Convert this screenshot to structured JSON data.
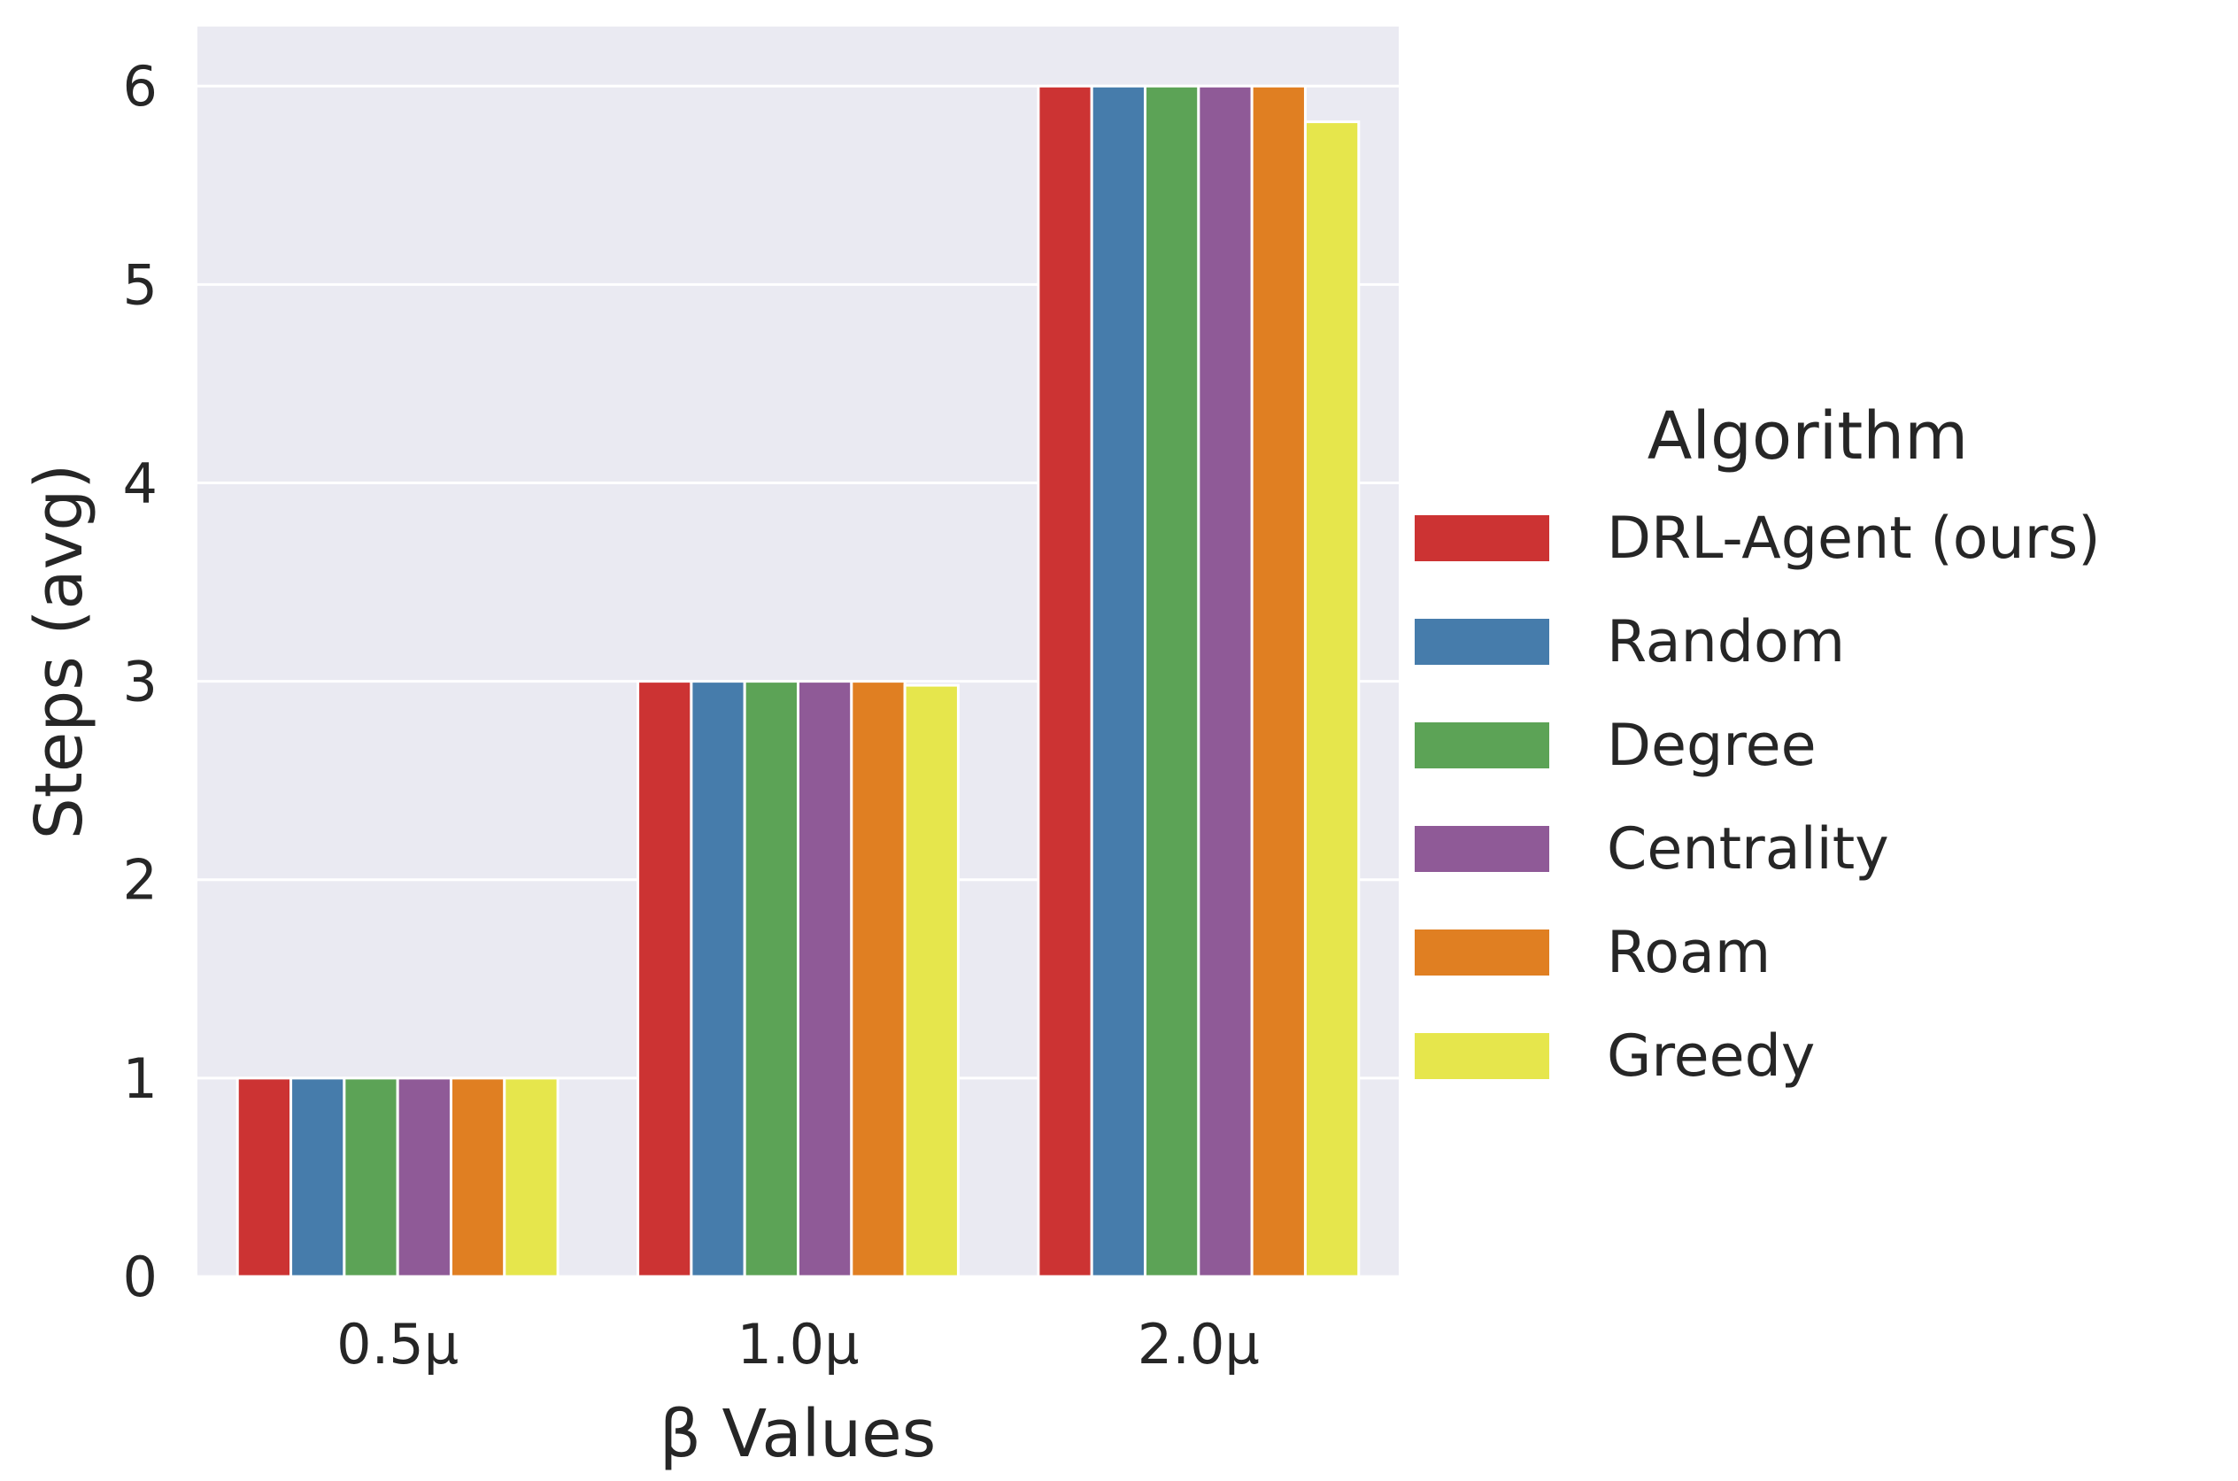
{
  "chart_data": {
    "type": "bar",
    "xlabel": "β Values",
    "ylabel": "Steps (avg)",
    "categories": [
      "0.5μ",
      "1.0μ",
      "2.0μ"
    ],
    "ylim": [
      0,
      6.3
    ],
    "yticks": [
      "0",
      "1",
      "2",
      "3",
      "4",
      "5",
      "6"
    ],
    "grid": true,
    "legend_title": "Algorithm",
    "legend_position": "right",
    "series": [
      {
        "name": "DRL-Agent (ours)",
        "color": "#cc3333",
        "values": [
          1,
          3,
          6
        ]
      },
      {
        "name": "Random",
        "color": "#467cab",
        "values": [
          1,
          3,
          6
        ]
      },
      {
        "name": "Degree",
        "color": "#5ca356",
        "values": [
          1,
          3,
          6
        ]
      },
      {
        "name": "Centrality",
        "color": "#8f5a97",
        "values": [
          1,
          3,
          6
        ]
      },
      {
        "name": "Roam",
        "color": "#e07f22",
        "values": [
          1,
          3,
          6
        ]
      },
      {
        "name": "Greedy",
        "color": "#e6e64c",
        "values": [
          1,
          2.98,
          5.82
        ]
      }
    ]
  }
}
